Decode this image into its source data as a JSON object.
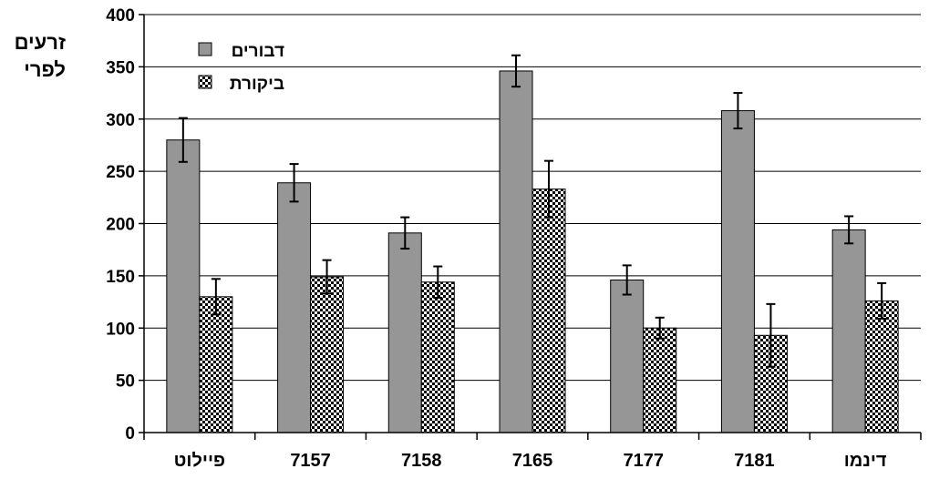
{
  "chart_data": {
    "type": "bar",
    "ylabel_lines": [
      "זרעים",
      "לפרי"
    ],
    "categories": [
      "פיילוט",
      "7157",
      "7158",
      "7165",
      "7177",
      "7181",
      "דינמו"
    ],
    "ylim": [
      0,
      400
    ],
    "yticks": [
      0,
      50,
      100,
      150,
      200,
      250,
      300,
      350,
      400
    ],
    "grid": true,
    "legend_position": "top-left",
    "series": [
      {
        "name": "דבורים",
        "values": [
          280,
          239,
          191,
          346,
          146,
          308,
          194
        ],
        "error": [
          21,
          18,
          15,
          15,
          14,
          17,
          13
        ],
        "color": "#969696",
        "pattern": "solid"
      },
      {
        "name": "ביקורת",
        "values": [
          130,
          149,
          144,
          233,
          100,
          93,
          126
        ],
        "error": [
          17,
          16,
          15,
          27,
          10,
          30,
          17
        ],
        "color": "#ffffff",
        "pattern": "checker"
      }
    ]
  }
}
